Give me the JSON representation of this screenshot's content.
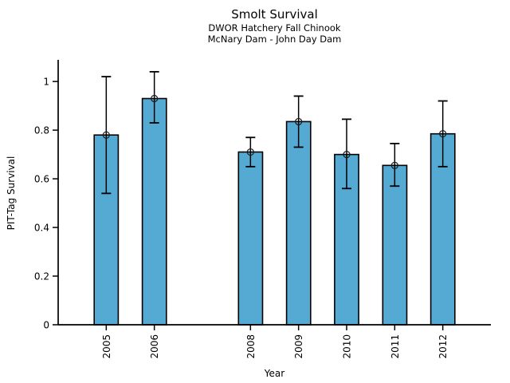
{
  "chart_data": {
    "type": "bar",
    "title": "Smolt Survival",
    "subtitle_lines": [
      "DWOR Hatchery Fall Chinook",
      "McNary Dam - John Day Dam"
    ],
    "xlabel": "Year",
    "ylabel": "PIT-Tag Survival",
    "categories": [
      2005,
      2006,
      2008,
      2009,
      2010,
      2011,
      2012
    ],
    "series": [
      {
        "name": "PIT-Tag Survival",
        "values": [
          0.78,
          0.93,
          0.71,
          0.835,
          0.7,
          0.655,
          0.785
        ],
        "error_low": [
          0.54,
          0.83,
          0.65,
          0.73,
          0.56,
          0.57,
          0.65
        ],
        "error_high": [
          1.02,
          1.04,
          0.77,
          0.94,
          0.845,
          0.745,
          0.92
        ]
      }
    ],
    "xlim": [
      2004,
      2013
    ],
    "ylim": [
      0,
      1.089
    ],
    "yticks": [
      0,
      0.2,
      0.4,
      0.6,
      0.8,
      1
    ],
    "ytick_labels": [
      "0",
      "0.2",
      "0.4",
      "0.6",
      "0.8",
      "1"
    ],
    "xtick_labels": [
      "2005",
      "2006",
      "2008",
      "2009",
      "2010",
      "2011",
      "2012"
    ],
    "bar_width_x_units": 0.5,
    "bar_fill_color": "#55AAD4",
    "bar_edge_color": "#000000",
    "error_bar_color": "#000000",
    "marker": "open-circle",
    "grid": false,
    "legend": "none"
  }
}
